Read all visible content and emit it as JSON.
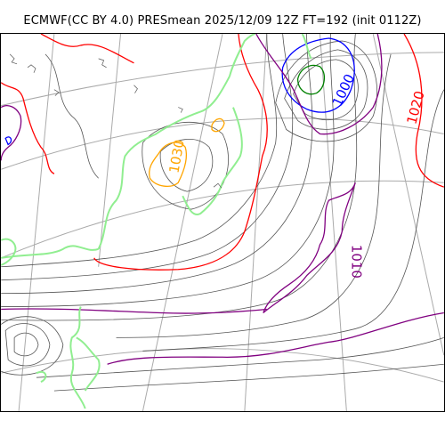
{
  "title": "ECMWF(CC BY 4.0) PRESmean 2025/12/09 12Z FT=192 (init 0112Z)",
  "colors": {
    "coast": "#90ee90",
    "isobar": "#555555",
    "isobar_1000": "#0000ff",
    "isobar_1010": "#800080",
    "isobar_1020": "#ff0000",
    "isobar_1030": "#ffa500",
    "isobar_low": "#008000",
    "grid": "#aaaaaa"
  },
  "contour_labels": [
    {
      "text": "1000",
      "color": "#0000ff",
      "level": 1000
    },
    {
      "text": "1020",
      "color": "#ff0000",
      "level": 1020
    },
    {
      "text": "1030",
      "color": "#ffa500",
      "level": 1030
    },
    {
      "text": "1010",
      "color": "#800080",
      "level": 1010
    }
  ]
}
